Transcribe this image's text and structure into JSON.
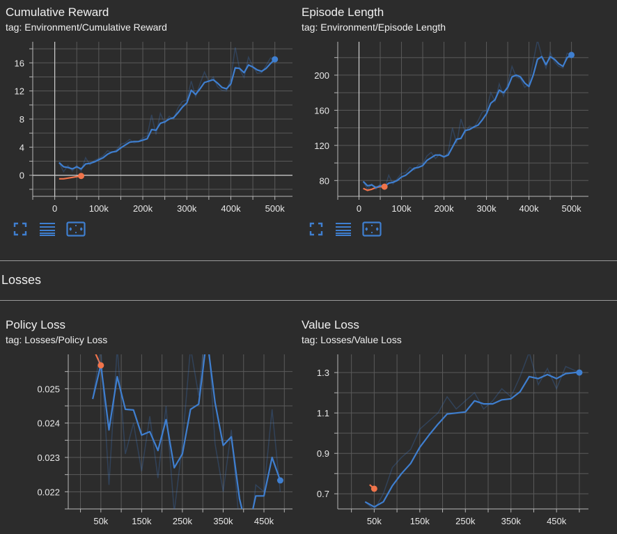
{
  "sections": {
    "losses_title": "Losses"
  },
  "colors": {
    "blue": "#3f7fd0",
    "orange": "#f0744b",
    "grid": "#5a5a5a",
    "axis": "#b8b8b8"
  },
  "icons": [
    "fit-domain-icon",
    "toggle-log-icon",
    "expand-chart-icon"
  ],
  "chart_data": [
    {
      "type": "line",
      "title": "Cumulative Reward",
      "tag": "tag: Environment/Cumulative Reward",
      "xlabel": "",
      "ylabel": "",
      "xlim": [
        -50000,
        540000
      ],
      "ylim": [
        -3,
        19
      ],
      "xticks": [
        0,
        100000,
        200000,
        300000,
        400000,
        500000
      ],
      "xtick_labels": [
        "0",
        "100k",
        "200k",
        "300k",
        "400k",
        "500k"
      ],
      "yticks": [
        0,
        4,
        8,
        12,
        16
      ],
      "ytick_labels": [
        "0",
        "4",
        "8",
        "12",
        "16"
      ],
      "series": [
        {
          "color": "#f0744b",
          "x": [
            10000,
            20000,
            30000,
            40000,
            50000,
            60000
          ],
          "y": [
            -0.5,
            -0.5,
            -0.4,
            -0.3,
            -0.2,
            -0.1
          ],
          "raw": [
            -0.5,
            -0.5,
            -0.4,
            -0.3,
            -0.2,
            -0.1
          ]
        },
        {
          "color": "#3f7fd0",
          "x": [
            10000,
            20000,
            30000,
            40000,
            50000,
            60000,
            70000,
            80000,
            90000,
            100000,
            110000,
            120000,
            130000,
            140000,
            150000,
            160000,
            170000,
            180000,
            190000,
            200000,
            210000,
            220000,
            230000,
            240000,
            250000,
            260000,
            270000,
            280000,
            290000,
            300000,
            310000,
            320000,
            330000,
            340000,
            350000,
            360000,
            370000,
            380000,
            390000,
            400000,
            410000,
            420000,
            430000,
            440000,
            450000,
            460000,
            470000,
            480000,
            490000,
            500000
          ],
          "y": [
            1.8,
            1.2,
            1.1,
            0.9,
            1.2,
            0.9,
            1.6,
            1.7,
            1.9,
            2.2,
            2.5,
            3.0,
            3.3,
            3.4,
            3.9,
            4.3,
            4.7,
            4.8,
            4.8,
            5.0,
            5.2,
            6.5,
            6.4,
            7.4,
            7.6,
            8.0,
            8.2,
            8.9,
            9.7,
            10.3,
            12.1,
            11.5,
            12.3,
            13.2,
            13.4,
            13.6,
            13.1,
            12.5,
            12.3,
            13.0,
            15.3,
            15.2,
            14.6,
            15.7,
            15.4,
            15.0,
            14.8,
            15.2,
            15.9,
            16.5
          ],
          "raw": [
            1.8,
            0.5,
            1.4,
            0.6,
            1.4,
            0.6,
            2.5,
            1.5,
            2.1,
            2.4,
            2.8,
            3.5,
            3.2,
            3.6,
            4.4,
            4.6,
            5.1,
            4.6,
            4.8,
            5.3,
            5.6,
            8.6,
            5.8,
            8.8,
            7.4,
            8.4,
            8.0,
            9.6,
            10.5,
            10.7,
            13.4,
            11.2,
            13.0,
            14.7,
            13.3,
            14.0,
            12.6,
            12.1,
            12.0,
            13.8,
            18.2,
            15.1,
            13.9,
            16.8,
            15.5,
            14.5,
            14.6,
            15.6,
            16.7,
            16.5
          ]
        }
      ]
    },
    {
      "type": "line",
      "title": "Episode Length",
      "tag": "tag: Environment/Episode Length",
      "xlabel": "",
      "ylabel": "",
      "xlim": [
        -50000,
        540000
      ],
      "ylim": [
        62,
        238
      ],
      "xticks": [
        0,
        100000,
        200000,
        300000,
        400000,
        500000
      ],
      "xtick_labels": [
        "0",
        "100k",
        "200k",
        "300k",
        "400k",
        "500k"
      ],
      "yticks": [
        80,
        120,
        160,
        200
      ],
      "ytick_labels": [
        "80",
        "120",
        "160",
        "200"
      ],
      "series": [
        {
          "color": "#f0744b",
          "x": [
            10000,
            20000,
            30000,
            40000,
            50000,
            60000
          ],
          "y": [
            71,
            69,
            70,
            72,
            73,
            73
          ],
          "raw": [
            71,
            68,
            70,
            73,
            74,
            73
          ]
        },
        {
          "color": "#3f7fd0",
          "x": [
            10000,
            20000,
            30000,
            40000,
            50000,
            60000,
            70000,
            80000,
            90000,
            100000,
            110000,
            120000,
            130000,
            140000,
            150000,
            160000,
            170000,
            180000,
            190000,
            200000,
            210000,
            220000,
            230000,
            240000,
            250000,
            260000,
            270000,
            280000,
            290000,
            300000,
            310000,
            320000,
            330000,
            340000,
            350000,
            360000,
            370000,
            380000,
            390000,
            400000,
            410000,
            420000,
            430000,
            440000,
            450000,
            460000,
            470000,
            480000,
            490000,
            500000
          ],
          "y": [
            79,
            74,
            75,
            72,
            74,
            73,
            77,
            78,
            80,
            84,
            86,
            90,
            94,
            95,
            97,
            103,
            106,
            109,
            109,
            107,
            109,
            118,
            127,
            128,
            137,
            138,
            141,
            143,
            149,
            156,
            168,
            172,
            183,
            180,
            186,
            198,
            200,
            198,
            191,
            187,
            200,
            218,
            221,
            212,
            221,
            218,
            213,
            210,
            220,
            223
          ],
          "raw": [
            79,
            70,
            76,
            70,
            76,
            70,
            86,
            76,
            82,
            88,
            89,
            95,
            92,
            98,
            99,
            108,
            112,
            105,
            110,
            106,
            112,
            140,
            122,
            150,
            135,
            142,
            140,
            148,
            158,
            160,
            180,
            170,
            190,
            176,
            190,
            210,
            198,
            196,
            186,
            190,
            215,
            240,
            222,
            208,
            226,
            215,
            210,
            208,
            225,
            223
          ]
        }
      ]
    },
    {
      "type": "line",
      "title": "Policy Loss",
      "tag": "tag: Losses/Policy Loss",
      "xlabel": "",
      "ylabel": "",
      "xlim": [
        -30000,
        520000
      ],
      "ylim": [
        0.0215,
        0.026
      ],
      "xticks": [
        50000,
        150000,
        250000,
        350000,
        450000
      ],
      "xtick_labels": [
        "50k",
        "150k",
        "250k",
        "350k",
        "450k"
      ],
      "yticks": [
        0.022,
        0.023,
        0.024,
        0.025
      ],
      "ytick_labels": [
        "0.022",
        "0.023",
        "0.024",
        "0.025"
      ],
      "series": [
        {
          "color": "#f0744b",
          "x": [
            30000,
            50000
          ],
          "y": [
            0.0262,
            0.02568
          ],
          "raw": [
            0.0262,
            0.02568
          ]
        },
        {
          "color": "#3f7fd0",
          "x": [
            30000,
            50000,
            70000,
            90000,
            110000,
            130000,
            150000,
            170000,
            190000,
            210000,
            230000,
            250000,
            270000,
            290000,
            310000,
            330000,
            350000,
            370000,
            390000,
            410000,
            430000,
            450000,
            470000,
            490000
          ],
          "y": [
            0.0247,
            0.0257,
            0.0238,
            0.02535,
            0.0244,
            0.02438,
            0.02365,
            0.02375,
            0.0232,
            0.0241,
            0.0227,
            0.0231,
            0.0244,
            0.02455,
            0.0265,
            0.0246,
            0.02335,
            0.0236,
            0.0218,
            0.0208,
            0.02188,
            0.02188,
            0.023,
            0.02233
          ],
          "raw": [
            0.0247,
            0.0262,
            0.0222,
            0.0262,
            0.0231,
            0.024,
            0.0226,
            0.0242,
            0.0224,
            0.0245,
            0.0214,
            0.0234,
            0.0262,
            0.0248,
            0.0272,
            0.0234,
            0.022,
            0.0238,
            0.021,
            0.02,
            0.0222,
            0.022,
            0.0244,
            0.022
          ]
        }
      ]
    },
    {
      "type": "line",
      "title": "Value Loss",
      "tag": "tag: Losses/Value Loss",
      "xlabel": "",
      "ylabel": "",
      "xlim": [
        -30000,
        520000
      ],
      "ylim": [
        0.625,
        1.39
      ],
      "xticks": [
        50000,
        150000,
        250000,
        350000,
        450000
      ],
      "xtick_labels": [
        "50k",
        "150k",
        "250k",
        "350k",
        "450k"
      ],
      "yticks": [
        0.7,
        0.9,
        1.1,
        1.3
      ],
      "ytick_labels": [
        "0.7",
        "0.9",
        "1.1",
        "1.3"
      ],
      "series": [
        {
          "color": "#f0744b",
          "x": [
            40000,
            50000
          ],
          "y": [
            0.745,
            0.725
          ],
          "raw": [
            0.745,
            0.725
          ]
        },
        {
          "color": "#3f7fd0",
          "x": [
            30000,
            50000,
            70000,
            90000,
            110000,
            130000,
            150000,
            170000,
            190000,
            210000,
            230000,
            250000,
            270000,
            290000,
            310000,
            330000,
            350000,
            370000,
            390000,
            410000,
            430000,
            450000,
            470000,
            490000,
            500000
          ],
          "y": [
            0.66,
            0.635,
            0.66,
            0.74,
            0.8,
            0.85,
            0.93,
            0.99,
            1.045,
            1.095,
            1.1,
            1.105,
            1.16,
            1.145,
            1.145,
            1.165,
            1.17,
            1.205,
            1.28,
            1.27,
            1.29,
            1.27,
            1.295,
            1.3,
            1.3
          ],
          "raw": [
            0.66,
            0.62,
            0.7,
            0.83,
            0.88,
            0.92,
            1.02,
            1.06,
            1.1,
            1.18,
            1.12,
            1.16,
            1.2,
            1.12,
            1.16,
            1.22,
            1.18,
            1.28,
            1.4,
            1.24,
            1.32,
            1.22,
            1.33,
            1.31,
            1.3
          ]
        }
      ]
    }
  ]
}
